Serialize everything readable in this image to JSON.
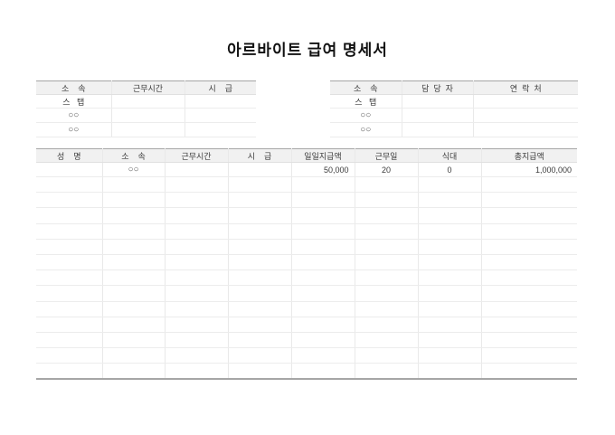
{
  "title": "아르바이트 급여 명세서",
  "info_table_left": {
    "headers": [
      "소    속",
      "근무시간",
      "시    급"
    ],
    "rows": [
      {
        "col1": "스   탭",
        "col2": "",
        "col3": ""
      },
      {
        "col1": "○○",
        "col2": "",
        "col3": ""
      },
      {
        "col1": "○○",
        "col2": "",
        "col3": ""
      }
    ]
  },
  "info_table_right": {
    "headers": [
      "소    속",
      "담  당  자",
      "연  락  처"
    ],
    "rows": [
      {
        "col1": "스   탭",
        "col2": "",
        "col3": ""
      },
      {
        "col1": "○○",
        "col2": "",
        "col3": ""
      },
      {
        "col1": "○○",
        "col2": "",
        "col3": ""
      }
    ]
  },
  "payroll_table": {
    "headers": [
      "성    명",
      "소    속",
      "근무시간",
      "시    급",
      "일일지급액",
      "근무일",
      "식대",
      "총지급액"
    ],
    "data_row": {
      "name": "",
      "affiliation": "○○",
      "work_hours": "",
      "hourly_wage": "",
      "daily_pay": "50,000",
      "work_days": "20",
      "meal_allowance": "0",
      "total_pay": "1,000,000"
    },
    "empty_row_count": 13
  },
  "colors": {
    "header_bg": "#f1f1f1",
    "outer_border": "#a6a6a6",
    "grid_line": "#ececec",
    "text": "#3a3a3a",
    "title_text": "#111111"
  }
}
